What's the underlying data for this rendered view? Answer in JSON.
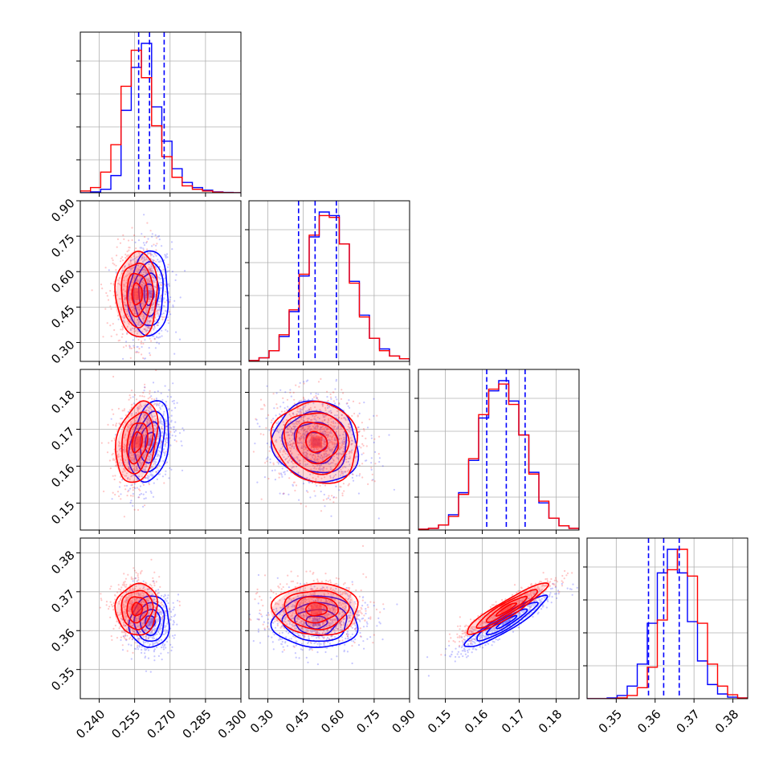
{
  "chart_data": {
    "type": "corner",
    "title": "",
    "grid": true,
    "series": [
      {
        "color": "#0000ff"
      },
      {
        "color": "#ff0000"
      }
    ],
    "quantile_line_style": "dashed",
    "quantile_line_color": "#0000ff",
    "params": [
      {
        "range": [
          0.232,
          0.3
        ],
        "ticks": [
          "0.240",
          "0.255",
          "0.270",
          "0.285",
          "0.300"
        ],
        "tick_values": [
          0.24,
          0.255,
          0.27,
          0.285,
          0.3
        ],
        "quantiles": [
          0.2567,
          0.2613,
          0.2675
        ],
        "hist_edges": [
          0.232,
          0.301
        ],
        "hist": [
          {
            "values": [
              0,
              0.5,
              2,
              10,
              48,
              73,
              87,
              50,
              30,
              14,
              6,
              3,
              1.5,
              0.5,
              0.2,
              0
            ]
          },
          {
            "values": [
              1,
              3,
              12,
              28,
              62,
              83,
              67,
              39,
              21,
              9,
              4,
              2,
              1,
              0.3,
              0.1,
              0
            ]
          }
        ]
      },
      {
        "range": [
          0.22,
          0.9
        ],
        "ticks": [
          "0.30",
          "0.45",
          "0.60",
          "0.75",
          "0.90"
        ],
        "tick_values": [
          0.3,
          0.45,
          0.6,
          0.75,
          0.9
        ],
        "quantiles": [
          0.43,
          0.5,
          0.59
        ],
        "hist_edges": [
          0.22,
          0.9
        ],
        "hist": [
          {
            "values": [
              0.5,
              2,
              6,
              14,
              28,
              48,
              70,
              84,
              82,
              66,
              45,
              26,
              13,
              7,
              3,
              1.5
            ]
          },
          {
            "values": [
              0.5,
              2,
              6,
              15,
              29,
              49,
              71,
              82,
              81,
              66,
              44,
              25,
              13,
              6,
              3,
              1.5
            ]
          }
        ]
      },
      {
        "range": [
          0.1427,
          0.1862
        ],
        "ticks": [
          "0.15",
          "0.16",
          "0.17",
          "0.18"
        ],
        "tick_values": [
          0.15,
          0.16,
          0.17,
          0.18
        ],
        "quantiles": [
          0.1612,
          0.1665,
          0.1716
        ],
        "hist_edges": [
          0.1427,
          0.1862
        ],
        "hist": [
          {
            "values": [
              0.5,
              1,
              3,
              9,
              22,
              41,
              66,
              82,
              88,
              76,
              56,
              34,
              16,
              7,
              2.5,
              1
            ]
          },
          {
            "values": [
              0.5,
              1,
              3,
              8,
              21,
              42,
              68,
              83,
              86,
              74,
              56,
              33,
              17,
              7,
              2.5,
              1
            ]
          }
        ]
      },
      {
        "range": [
          0.3425,
          0.3838
        ],
        "ticks": [
          "0.35",
          "0.36",
          "0.37",
          "0.38"
        ],
        "tick_values": [
          0.35,
          0.36,
          0.37,
          0.38
        ],
        "quantiles": [
          0.3583,
          0.3622,
          0.3662
        ],
        "hist_edges": [
          0.3425,
          0.3838
        ],
        "hist": [
          {
            "values": [
              0,
              0,
              0.5,
              2,
              8,
              22,
              48,
              80,
              95,
              80,
              49,
              24,
              9,
              3,
              1,
              0.5
            ]
          },
          {
            "values": [
              0,
              0,
              0,
              0.5,
              2,
              7,
              20,
              50,
              82,
              95,
              78,
              48,
              22,
              8,
              2.5,
              0.5
            ]
          }
        ]
      }
    ],
    "panels_2d": [
      {
        "row": 1,
        "col": 0,
        "blue": {
          "mx": 0.261,
          "my": 0.505,
          "sx": 0.0042,
          "sy": 0.09,
          "rho": 0.05
        },
        "red": {
          "mx": 0.256,
          "my": 0.505,
          "sx": 0.0044,
          "sy": 0.09,
          "rho": 0.0
        }
      },
      {
        "row": 2,
        "col": 0,
        "blue": {
          "mx": 0.2615,
          "my": 0.1665,
          "sx": 0.0042,
          "sy": 0.0055,
          "rho": 0.3
        },
        "red": {
          "mx": 0.256,
          "my": 0.1665,
          "sx": 0.0044,
          "sy": 0.0055,
          "rho": 0.3
        }
      },
      {
        "row": 2,
        "col": 1,
        "blue": {
          "mx": 0.505,
          "my": 0.1665,
          "sx": 0.09,
          "sy": 0.0055,
          "rho": -0.1
        },
        "red": {
          "mx": 0.505,
          "my": 0.1665,
          "sx": 0.09,
          "sy": 0.0055,
          "rho": -0.1
        }
      },
      {
        "row": 3,
        "col": 0,
        "blue": {
          "mx": 0.2615,
          "my": 0.3622,
          "sx": 0.0042,
          "sy": 0.0033,
          "rho": 0.05
        },
        "red": {
          "mx": 0.256,
          "my": 0.3655,
          "sx": 0.0044,
          "sy": 0.0033,
          "rho": 0.05
        }
      },
      {
        "row": 3,
        "col": 1,
        "blue": {
          "mx": 0.505,
          "my": 0.3622,
          "sx": 0.09,
          "sy": 0.0033,
          "rho": 0.0
        },
        "red": {
          "mx": 0.505,
          "my": 0.3655,
          "sx": 0.09,
          "sy": 0.0033,
          "rho": 0.0
        }
      },
      {
        "row": 3,
        "col": 2,
        "blue": {
          "mx": 0.1665,
          "my": 0.3622,
          "sx": 0.0055,
          "sy": 0.0033,
          "rho": 0.93
        },
        "red": {
          "mx": 0.1665,
          "my": 0.3655,
          "sx": 0.0055,
          "sy": 0.0033,
          "rho": 0.93
        }
      }
    ]
  }
}
